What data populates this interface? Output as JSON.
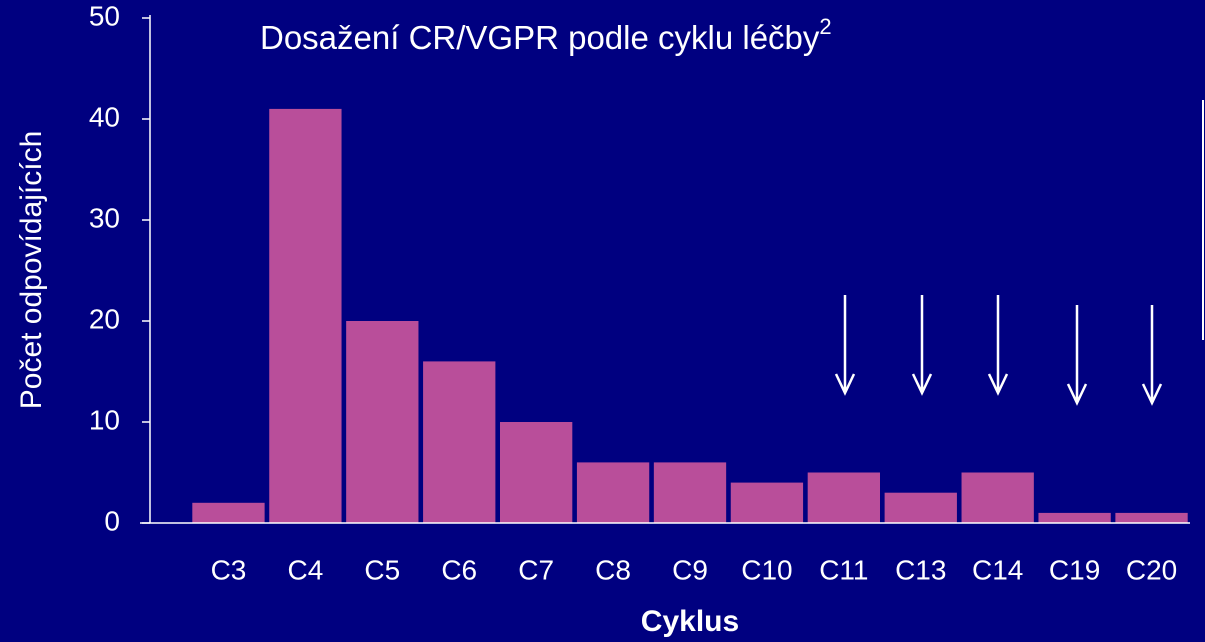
{
  "chart_data": {
    "type": "bar",
    "title": "Dosažení CR/VGPR podle cyklu léčby",
    "title_superscript": "2",
    "x_label": "Cyklus",
    "y_label": "Počet  odpovídajících",
    "categories": [
      "C3",
      "C4",
      "C5",
      "C6",
      "C7",
      "C8",
      "C9",
      "C10",
      "C11",
      "C13",
      "C14",
      "C19",
      "C20"
    ],
    "values": [
      2,
      41,
      20,
      16,
      10,
      6,
      6,
      4,
      5,
      3,
      5,
      1,
      1
    ],
    "color": "#b94e9a",
    "ylim": [
      0,
      50
    ],
    "yticks": [
      0,
      10,
      20,
      30,
      40,
      50
    ],
    "grid": false
  }
}
